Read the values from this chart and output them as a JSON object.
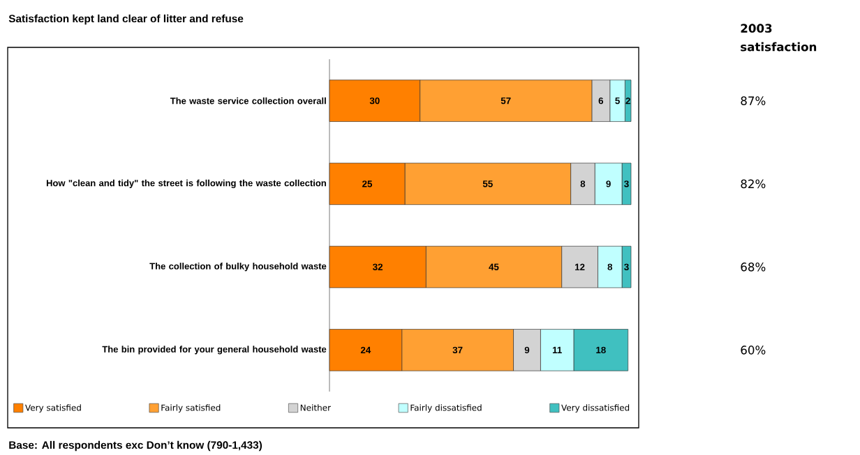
{
  "chart_data": {
    "type": "bar",
    "orientation": "horizontal",
    "stacked": true,
    "data_labels": true,
    "legend": "bottom",
    "tick_labels": "y",
    "title": "Satisfaction kept land clear of litter and refuse",
    "categories": [
      "The waste service collection overall",
      "How \"clean and tidy\" the street is following the waste collection",
      "The collection of bulky household waste",
      "The bin provided for your general household waste"
    ],
    "series": [
      {
        "name": "Very satisfied",
        "color": "#ff8000",
        "values": [
          30,
          25,
          32,
          24
        ]
      },
      {
        "name": "Fairly satisfied",
        "color": "#ffa033",
        "values": [
          57,
          55,
          45,
          37
        ]
      },
      {
        "name": "Neither",
        "color": "#d3d3d3",
        "values": [
          6,
          8,
          12,
          9
        ]
      },
      {
        "name": "Fairly dissatisfied",
        "color": "#c0ffff",
        "values": [
          5,
          9,
          8,
          11
        ]
      },
      {
        "name": "Very dissatisfied",
        "color": "#40c0c0",
        "values": [
          2,
          3,
          3,
          18
        ]
      }
    ],
    "annotations": [
      "2003 satisfaction",
      "87%",
      "82%",
      "68%",
      "60%",
      "Base: All respondents exc Don’t know (790-1,433)"
    ]
  }
}
